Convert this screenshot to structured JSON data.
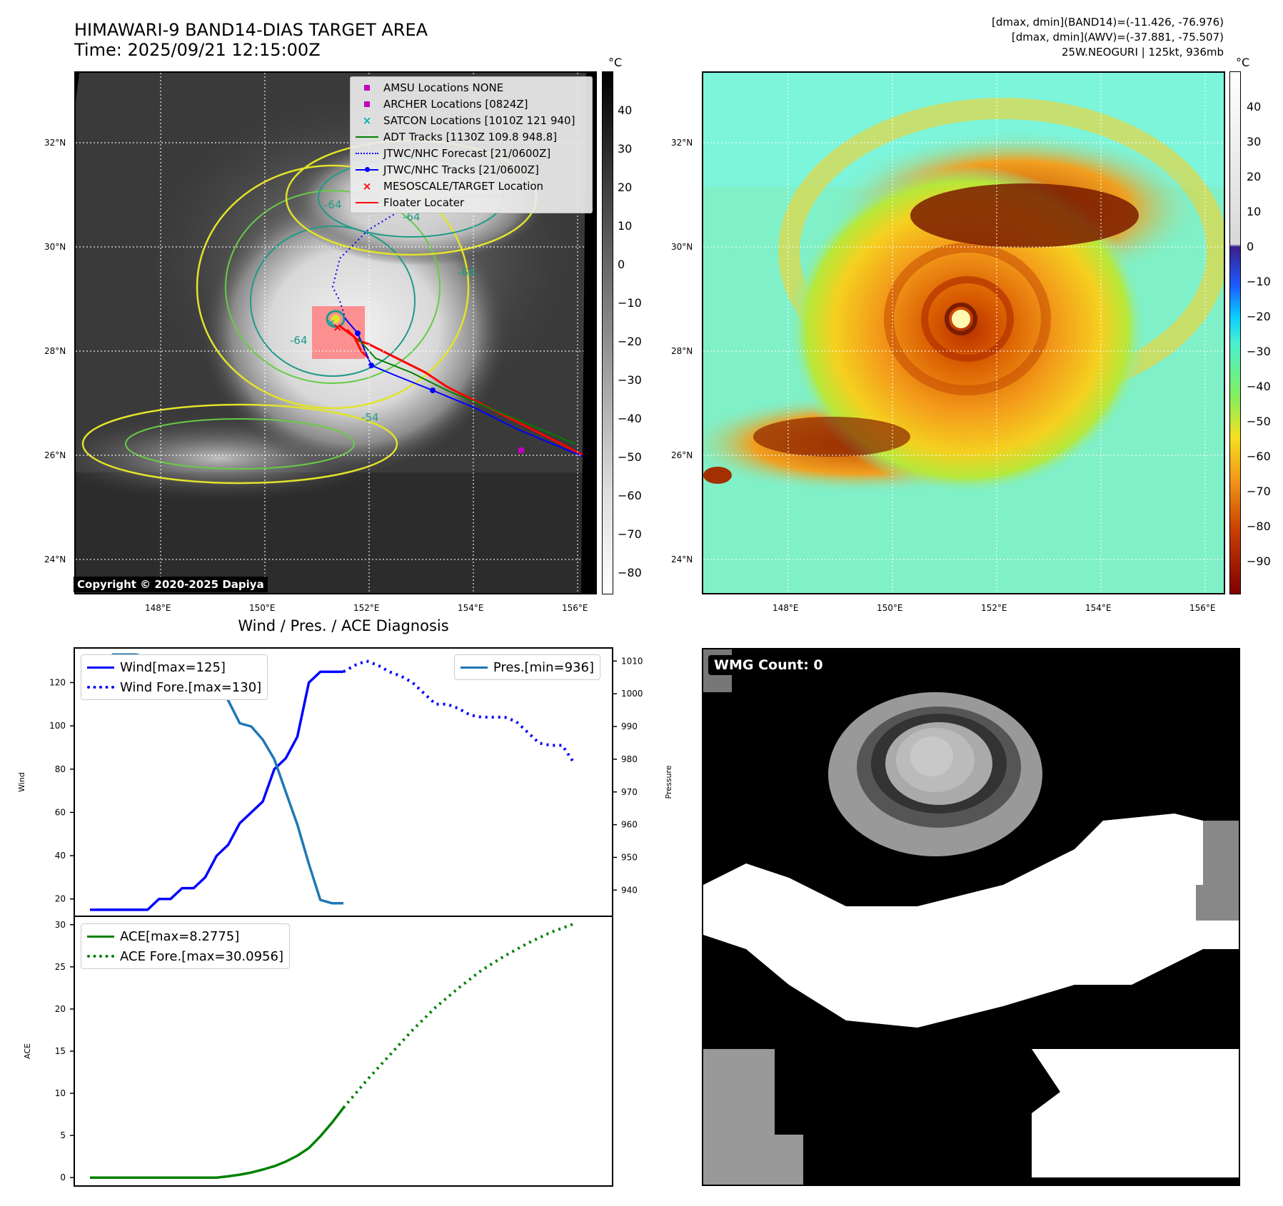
{
  "header": {
    "title_line1": "HIMAWARI-9 BAND14-DIAS TARGET AREA",
    "title_line2": "Time: 2025/09/21 12:15:00Z",
    "info_line1": "[dmax, dmin](BAND14)=(-11.426, -76.976)",
    "info_line2": "[dmax, dmin](AWV)=(-37.881, -75.507)",
    "info_line3": "25W.NEOGURI | 125kt, 936mb"
  },
  "map": {
    "lat_labels": [
      "32°N",
      "30°N",
      "28°N",
      "26°N",
      "24°N"
    ],
    "lon_labels": [
      "148°E",
      "150°E",
      "152°E",
      "154°E",
      "156°E"
    ],
    "contour_labels": [
      "-64",
      "-64",
      "-64",
      "-54",
      "-64"
    ],
    "copyright": "Copyright © 2020-2025 Dapiya"
  },
  "legend": {
    "items": [
      {
        "label": "AMSU Locations NONE",
        "symbol": "square",
        "color": "#c000c0"
      },
      {
        "label": "ARCHER Locations [0824Z]",
        "symbol": "square",
        "color": "#c000c0"
      },
      {
        "label": "SATCON Locations [1010Z 121 940]",
        "symbol": "x",
        "color": "#00b0b0"
      },
      {
        "label": "ADT Tracks [1130Z 109.8 948.8]",
        "symbol": "line",
        "color": "#008000"
      },
      {
        "label": "JTWC/NHC Forecast [21/0600Z]",
        "symbol": "dotted",
        "color": "#0000ff"
      },
      {
        "label": "JTWC/NHC Tracks [21/0600Z]",
        "symbol": "line-dot",
        "color": "#0000ff"
      },
      {
        "label": "MESOSCALE/TARGET Location",
        "symbol": "x",
        "color": "#ff0000"
      },
      {
        "label": "Floater Locater",
        "symbol": "line",
        "color": "#ff0000"
      }
    ]
  },
  "colorbar_ir": {
    "unit": "°C",
    "ticks": [
      "40",
      "30",
      "20",
      "10",
      "0",
      "−10",
      "−20",
      "−30",
      "−40",
      "−50",
      "−60",
      "−70",
      "−80"
    ]
  },
  "colorbar_wv": {
    "unit": "°C",
    "ticks": [
      "40",
      "30",
      "20",
      "10",
      "0",
      "−10",
      "−20",
      "−30",
      "−40",
      "−50",
      "−60",
      "−70",
      "−80",
      "−90"
    ]
  },
  "wmg": {
    "label": "WMG Count: 0"
  },
  "chart_data": [
    {
      "type": "line",
      "title": "Wind / Pres. / ACE Diagnosis",
      "ylabel": "Wind",
      "ylabel_right": "Pressure",
      "ylim": [
        12,
        136
      ],
      "ylim_right": [
        932,
        1014
      ],
      "yticks": [
        "120",
        "100",
        "80",
        "60",
        "40",
        "20"
      ],
      "yticks_right": [
        "1010",
        "1000",
        "990",
        "980",
        "970",
        "960",
        "950",
        "940"
      ],
      "legend_left": [
        "Wind[max=125]",
        "Wind Fore.[max=130]"
      ],
      "legend_right": [
        "Pres.[min=936]"
      ],
      "series": [
        {
          "name": "Wind[max=125]",
          "color": "#0000ff",
          "style": "solid",
          "axis": "left",
          "x": [
            0,
            1,
            2,
            3,
            4,
            5,
            6,
            7,
            8,
            9,
            10,
            11,
            12,
            13,
            14,
            15,
            16,
            17,
            18,
            19,
            20,
            21,
            22
          ],
          "values": [
            15,
            15,
            15,
            15,
            15,
            15,
            20,
            20,
            25,
            25,
            30,
            40,
            45,
            55,
            60,
            65,
            80,
            85,
            95,
            120,
            125,
            125,
            125
          ]
        },
        {
          "name": "Wind Fore.[max=130]",
          "color": "#0000ff",
          "style": "dotted",
          "axis": "left",
          "x": [
            22,
            23,
            24,
            25,
            26,
            27,
            28,
            29,
            30,
            31,
            32,
            33,
            34,
            35,
            36,
            37,
            38,
            39,
            40,
            41,
            42
          ],
          "values": [
            125,
            128,
            130,
            128,
            125,
            123,
            120,
            115,
            110,
            110,
            108,
            105,
            104,
            104,
            104,
            102,
            97,
            92,
            91,
            91,
            83
          ]
        },
        {
          "name": "Pres.[min=936]",
          "color": "#1f77b4",
          "style": "solid",
          "axis": "right",
          "x": [
            0,
            1,
            2,
            3,
            4,
            5,
            6,
            7,
            8,
            9,
            10,
            11,
            12,
            13,
            14,
            15,
            16,
            17,
            18,
            19,
            20,
            21,
            22
          ],
          "values": [
            1009,
            1009,
            1012,
            1012,
            1012,
            1011,
            1009,
            1009,
            1009,
            1008,
            1006,
            1003,
            998,
            991,
            990,
            986,
            980,
            970,
            960,
            948,
            937,
            936,
            936
          ]
        }
      ]
    },
    {
      "type": "line",
      "ylabel": "ACE",
      "ylim": [
        -1,
        31
      ],
      "yticks": [
        "30",
        "25",
        "20",
        "15",
        "10",
        "5",
        "0"
      ],
      "legend": [
        "ACE[max=8.2775]",
        "ACE Fore.[max=30.0956]"
      ],
      "series": [
        {
          "name": "ACE[max=8.2775]",
          "color": "#008000",
          "style": "solid",
          "x": [
            0,
            2,
            4,
            6,
            8,
            10,
            11,
            12,
            13,
            14,
            15,
            16,
            17,
            18,
            19,
            20,
            21,
            22
          ],
          "values": [
            0,
            0,
            0,
            0,
            0,
            0,
            0,
            0.15,
            0.35,
            0.6,
            0.95,
            1.35,
            1.9,
            2.6,
            3.5,
            4.9,
            6.5,
            8.2775
          ]
        },
        {
          "name": "ACE Fore.[max=30.0956]",
          "color": "#008000",
          "style": "dotted",
          "x": [
            22,
            24,
            26,
            28,
            30,
            32,
            34,
            36,
            38,
            40,
            42
          ],
          "values": [
            8.2775,
            11.5,
            14.5,
            17.5,
            20.2,
            22.5,
            24.6,
            26.3,
            27.8,
            29.1,
            30.0956
          ]
        }
      ]
    }
  ]
}
